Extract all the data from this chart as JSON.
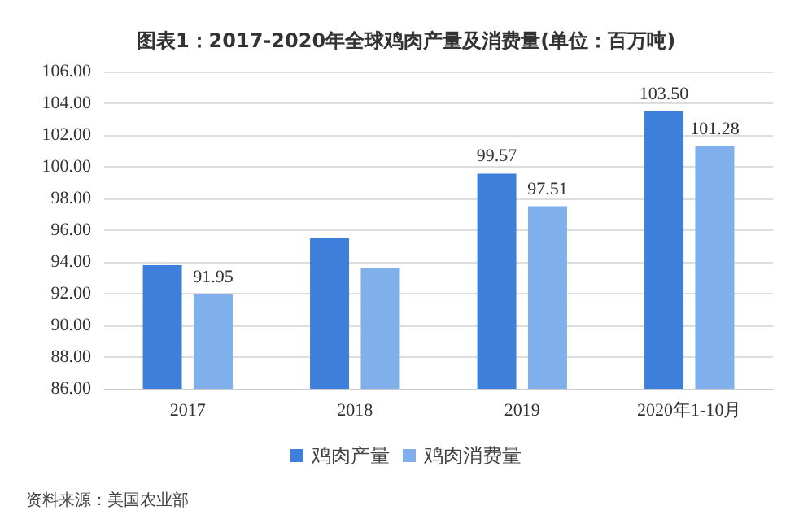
{
  "chart_data": {
    "type": "bar",
    "title": "图表1：2017-2020年全球鸡肉产量及消费量(单位：百万吨)",
    "categories": [
      "2017",
      "2018",
      "2019",
      "2020年1-10月"
    ],
    "series": [
      {
        "name": "鸡肉产量",
        "color": "#3f7fdc",
        "values": [
          93.8,
          95.5,
          99.57,
          103.5
        ],
        "value_labels": [
          null,
          null,
          "99.57",
          "103.50"
        ]
      },
      {
        "name": "鸡肉消费量",
        "color": "#7fb0ec",
        "values": [
          91.95,
          93.6,
          97.51,
          101.28
        ],
        "value_labels": [
          "91.95",
          null,
          "97.51",
          "101.28"
        ]
      }
    ],
    "ylim": [
      86,
      106
    ],
    "yticks": [
      {
        "value": 86,
        "label": "86.00"
      },
      {
        "value": 88,
        "label": "88.00"
      },
      {
        "value": 90,
        "label": "90.00"
      },
      {
        "value": 92,
        "label": "92.00"
      },
      {
        "value": 94,
        "label": "94.00"
      },
      {
        "value": 96,
        "label": "96.00"
      },
      {
        "value": 98,
        "label": "98.00"
      },
      {
        "value": 100,
        "label": "100.00"
      },
      {
        "value": 102,
        "label": "102.00"
      },
      {
        "value": 104,
        "label": "104.00"
      },
      {
        "value": 106,
        "label": "106.00"
      }
    ],
    "grid": "y",
    "legend": "bottom",
    "annotations": [
      "资料来源：美国农业部"
    ]
  }
}
